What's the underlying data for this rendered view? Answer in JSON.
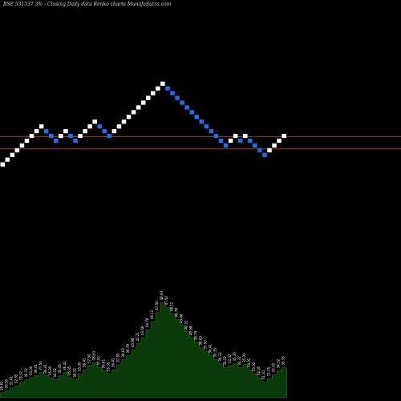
{
  "header": {
    "title": "BSE 531537 3% - Closing Daily data Renko charts MunafaSutra.com"
  },
  "colors": {
    "background": "#000000",
    "up_brick": "#ffffff",
    "down_brick": "#1e6ff0",
    "guide_line": "#a0461e",
    "volume_fill": "#0a3a0a",
    "volume_outline": "#1c7a1c",
    "label": "#ffffff"
  },
  "chart_data": {
    "type": "renko",
    "title": "BSE 531537 3% - Closing Daily data Renko charts MunafaSutra.com",
    "xlabel": "",
    "ylabel": "",
    "brick_size_percent": 3,
    "grid": false,
    "bricks": [
      {
        "dir": "up",
        "value": 29.61
      },
      {
        "dir": "up",
        "value": 30.5
      },
      {
        "dir": "up",
        "value": 31.41
      },
      {
        "dir": "up",
        "value": 32.35
      },
      {
        "dir": "up",
        "value": 33.32
      },
      {
        "dir": "up",
        "value": 34.32
      },
      {
        "dir": "up",
        "value": 35.35
      },
      {
        "dir": "up",
        "value": 36.41
      },
      {
        "dir": "up",
        "value": 37.5
      },
      {
        "dir": "down",
        "value": 36.41
      },
      {
        "dir": "down",
        "value": 35.35
      },
      {
        "dir": "down",
        "value": 34.32
      },
      {
        "dir": "up",
        "value": 35.35
      },
      {
        "dir": "up",
        "value": 36.41
      },
      {
        "dir": "down",
        "value": 35.35
      },
      {
        "dir": "down",
        "value": 34.32
      },
      {
        "dir": "up",
        "value": 35.35
      },
      {
        "dir": "up",
        "value": 36.41
      },
      {
        "dir": "up",
        "value": 37.5
      },
      {
        "dir": "up",
        "value": 38.63
      },
      {
        "dir": "down",
        "value": 37.5
      },
      {
        "dir": "down",
        "value": 36.41
      },
      {
        "dir": "down",
        "value": 35.35
      },
      {
        "dir": "up",
        "value": 36.41
      },
      {
        "dir": "up",
        "value": 37.5
      },
      {
        "dir": "up",
        "value": 38.63
      },
      {
        "dir": "up",
        "value": 39.79
      },
      {
        "dir": "up",
        "value": 40.98
      },
      {
        "dir": "up",
        "value": 42.21
      },
      {
        "dir": "up",
        "value": 43.48
      },
      {
        "dir": "up",
        "value": 44.78
      },
      {
        "dir": "up",
        "value": 46.12
      },
      {
        "dir": "up",
        "value": 47.5
      },
      {
        "dir": "up",
        "value": 48.93
      },
      {
        "dir": "down",
        "value": 47.5
      },
      {
        "dir": "down",
        "value": 46.12
      },
      {
        "dir": "down",
        "value": 44.78
      },
      {
        "dir": "down",
        "value": 43.48
      },
      {
        "dir": "down",
        "value": 42.21
      },
      {
        "dir": "down",
        "value": 40.98
      },
      {
        "dir": "down",
        "value": 39.79
      },
      {
        "dir": "down",
        "value": 38.63
      },
      {
        "dir": "down",
        "value": 37.5
      },
      {
        "dir": "down",
        "value": 36.41
      },
      {
        "dir": "down",
        "value": 35.35
      },
      {
        "dir": "down",
        "value": 34.32
      },
      {
        "dir": "down",
        "value": 33.32
      },
      {
        "dir": "up",
        "value": 34.32
      },
      {
        "dir": "up",
        "value": 35.35
      },
      {
        "dir": "down",
        "value": 34.32
      },
      {
        "dir": "up",
        "value": 35.35
      },
      {
        "dir": "down",
        "value": 34.32
      },
      {
        "dir": "down",
        "value": 33.32
      },
      {
        "dir": "down",
        "value": 32.35
      },
      {
        "dir": "down",
        "value": 31.41
      },
      {
        "dir": "up",
        "value": 32.35
      },
      {
        "dir": "up",
        "value": 33.32
      },
      {
        "dir": "up",
        "value": 34.32
      },
      {
        "dir": "up",
        "value": 35.35
      }
    ],
    "volume_profile": [
      0.05,
      0.07,
      0.1,
      0.12,
      0.15,
      0.18,
      0.2,
      0.22,
      0.25,
      0.22,
      0.2,
      0.18,
      0.22,
      0.25,
      0.2,
      0.18,
      0.24,
      0.28,
      0.32,
      0.35,
      0.3,
      0.27,
      0.24,
      0.28,
      0.33,
      0.38,
      0.42,
      0.48,
      0.54,
      0.6,
      0.68,
      0.76,
      0.85,
      0.95,
      0.9,
      0.84,
      0.78,
      0.72,
      0.66,
      0.6,
      0.55,
      0.5,
      0.46,
      0.42,
      0.38,
      0.34,
      0.3,
      0.32,
      0.34,
      0.3,
      0.33,
      0.28,
      0.24,
      0.2,
      0.16,
      0.19,
      0.23,
      0.27,
      0.3
    ],
    "guide_levels": [
      35.2,
      32.6
    ],
    "ylim": [
      28.6,
      50.0
    ]
  }
}
